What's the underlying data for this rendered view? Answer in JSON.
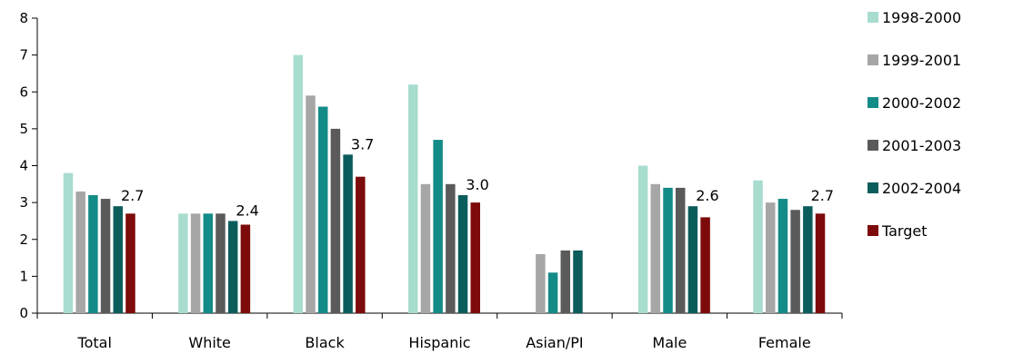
{
  "chart_data": {
    "type": "bar",
    "categories": [
      "Total",
      "White",
      "Black",
      "Hispanic",
      "Asian/PI",
      "Male",
      "Female"
    ],
    "series": [
      {
        "name": "1998-2000",
        "color": "#a8dccf",
        "values": [
          3.8,
          2.7,
          7.0,
          6.2,
          null,
          4.0,
          3.6
        ]
      },
      {
        "name": "1999-2001",
        "color": "#a6a6a6",
        "values": [
          3.3,
          2.7,
          5.9,
          3.5,
          1.6,
          3.5,
          3.0
        ]
      },
      {
        "name": "2000-2002",
        "color": "#138b87",
        "values": [
          3.2,
          2.7,
          5.6,
          4.7,
          1.1,
          3.4,
          3.1
        ]
      },
      {
        "name": "2001-2003",
        "color": "#5a5a5a",
        "values": [
          3.1,
          2.7,
          5.0,
          3.5,
          1.7,
          3.4,
          2.8
        ]
      },
      {
        "name": "2002-2004",
        "color": "#0b5d5c",
        "values": [
          2.9,
          2.5,
          4.3,
          3.2,
          1.7,
          2.9,
          2.9
        ]
      },
      {
        "name": "Target",
        "color": "#7d0b0b",
        "values": [
          2.7,
          2.4,
          3.7,
          3.0,
          null,
          2.6,
          2.7
        ]
      }
    ],
    "data_labels": [
      "2.7",
      "2.4",
      "3.7",
      "3.0",
      "",
      "2.6",
      "2.7"
    ],
    "yticks": [
      "0",
      "1",
      "2",
      "3",
      "4",
      "5",
      "6",
      "7",
      "8"
    ],
    "ylim": [
      0,
      8
    ],
    "title": "",
    "xlabel": "",
    "ylabel": "",
    "grid": false,
    "legend_position": "right"
  }
}
